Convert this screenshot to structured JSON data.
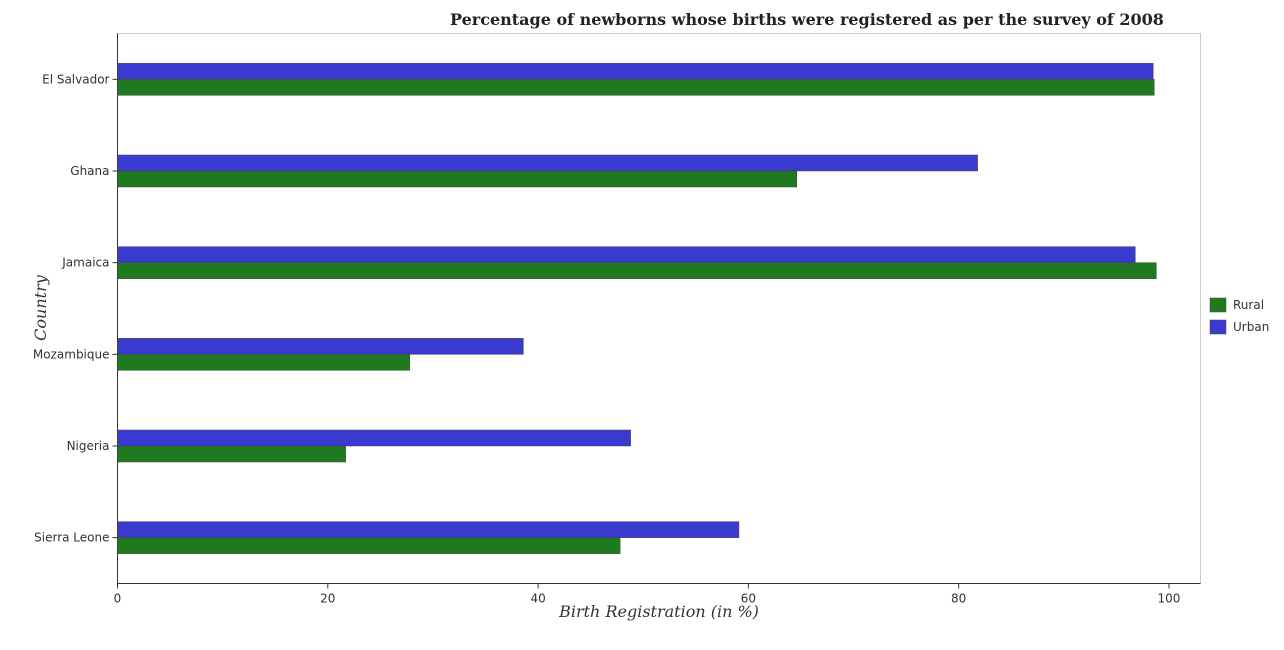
{
  "chart_data": {
    "type": "bar",
    "orientation": "horizontal",
    "title": "Percentage of newborns whose births were registered as per the survey of 2008",
    "xlabel": "Birth Registration (in %)",
    "ylabel": "Country",
    "xlim": [
      0,
      103
    ],
    "xticks": [
      0,
      20,
      40,
      60,
      80,
      100
    ],
    "categories": [
      "El Salvador",
      "Ghana",
      "Jamaica",
      "Mozambique",
      "Nigeria",
      "Sierra Leone"
    ],
    "series": [
      {
        "name": "Rural",
        "color": "#1f7a1f",
        "values": [
          98.6,
          64.6,
          98.8,
          27.8,
          21.7,
          47.8
        ]
      },
      {
        "name": "Urban",
        "color": "#3a3ad1",
        "values": [
          98.5,
          81.8,
          96.8,
          38.6,
          48.8,
          59.1
        ]
      }
    ],
    "legend": "right",
    "grid": false
  }
}
